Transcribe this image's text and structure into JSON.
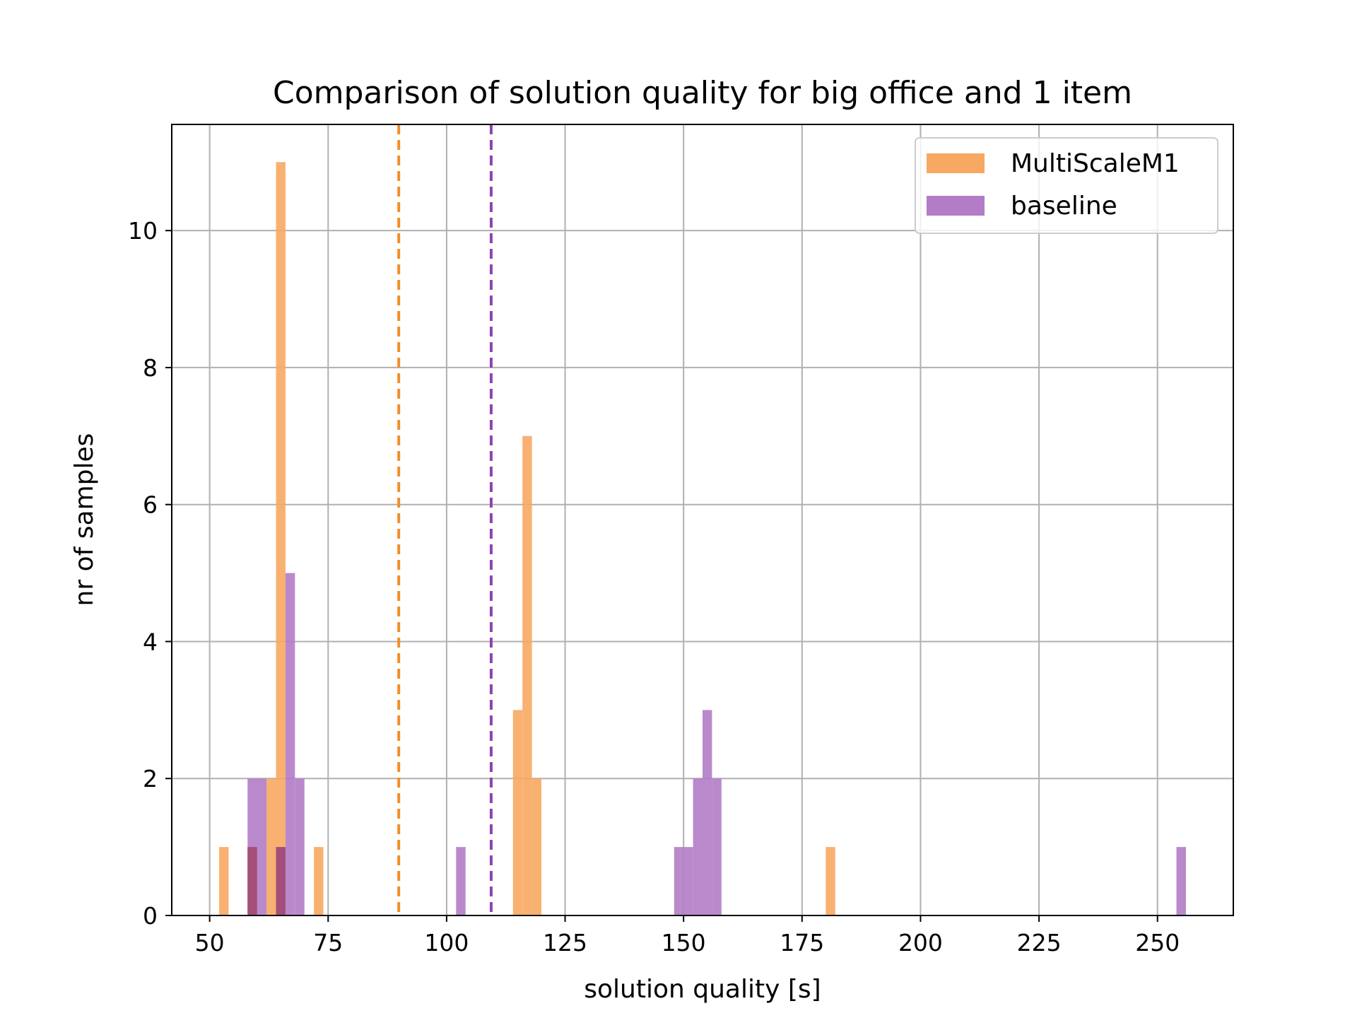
{
  "chart_data": {
    "type": "bar",
    "subtype": "overlaid-histogram",
    "title": "Comparison of solution quality for big office and 1 item",
    "xlabel": "solution quality [s]",
    "ylabel": "nr of samples",
    "xlim": [
      42,
      266
    ],
    "ylim": [
      0,
      11.55
    ],
    "xticks": [
      50,
      75,
      100,
      125,
      150,
      175,
      200,
      225,
      250
    ],
    "yticks": [
      0,
      2,
      4,
      6,
      8,
      10
    ],
    "grid": true,
    "legend_position": "top-right",
    "series": [
      {
        "name": "MultiScaleM1",
        "color": "#f7a862",
        "bins": [
          {
            "x0": 52,
            "x1": 54,
            "value": 1
          },
          {
            "x0": 58,
            "x1": 60,
            "value": 1
          },
          {
            "x0": 62,
            "x1": 64,
            "value": 2
          },
          {
            "x0": 64,
            "x1": 66,
            "value": 11
          },
          {
            "x0": 72,
            "x1": 74,
            "value": 1
          },
          {
            "x0": 114,
            "x1": 116,
            "value": 3
          },
          {
            "x0": 116,
            "x1": 118,
            "value": 7
          },
          {
            "x0": 118,
            "x1": 120,
            "value": 2
          },
          {
            "x0": 180,
            "x1": 182,
            "value": 1
          }
        ],
        "mean_line": 89.9
      },
      {
        "name": "baseline",
        "color": "#b27cc6",
        "bins": [
          {
            "x0": 58,
            "x1": 62,
            "value": 2
          },
          {
            "x0": 64,
            "x1": 66,
            "value": 1
          },
          {
            "x0": 66,
            "x1": 68,
            "value": 5
          },
          {
            "x0": 68,
            "x1": 70,
            "value": 2
          },
          {
            "x0": 102,
            "x1": 104,
            "value": 1
          },
          {
            "x0": 148,
            "x1": 150,
            "value": 1
          },
          {
            "x0": 150,
            "x1": 152,
            "value": 1
          },
          {
            "x0": 152,
            "x1": 154,
            "value": 2
          },
          {
            "x0": 154,
            "x1": 156,
            "value": 3
          },
          {
            "x0": 156,
            "x1": 158,
            "value": 2
          },
          {
            "x0": 254,
            "x1": 256,
            "value": 1
          }
        ],
        "mean_line": 109.4
      }
    ],
    "mean_line_colors": {
      "MultiScaleM1": "#f28e2b",
      "baseline": "#8e44ad"
    }
  }
}
